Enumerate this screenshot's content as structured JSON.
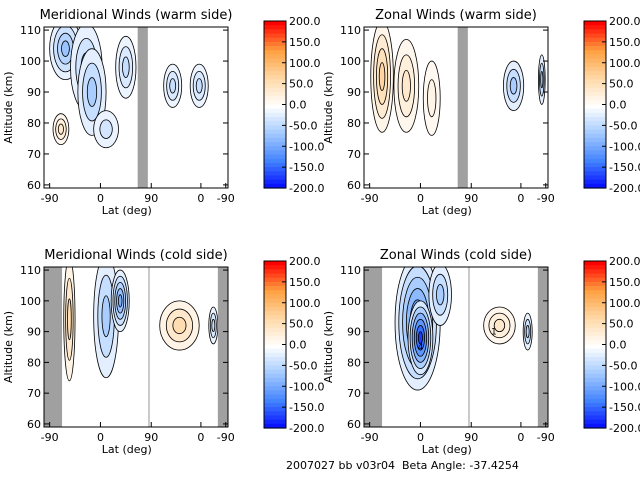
{
  "footer": {
    "date_code": "2007027",
    "tag": "bb",
    "version": "v03r04",
    "beta_label": "Beta Angle:",
    "beta_value": "-37.4254"
  },
  "colors": {
    "gap_gray": "#a0a0a0",
    "contour_line": "#000000",
    "scale": [
      "#0000ff",
      "#4080ff",
      "#a0c8ff",
      "#ffffff",
      "#ffd9a8",
      "#ffa040",
      "#ff0000"
    ]
  },
  "chart_data": [
    {
      "type": "heatmap",
      "title": "Meridional Winds (warm side)",
      "xlabel": "Lat (deg)",
      "ylabel": "Altitude (km)",
      "x_ticks": [
        "-90",
        "0",
        "90",
        "0",
        "-90"
      ],
      "y_ticks": [
        "60",
        "70",
        "80",
        "90",
        "100",
        "110"
      ],
      "ylim": [
        59,
        111
      ],
      "colorbar": {
        "min": -200,
        "max": 200,
        "ticks": [
          "200.0",
          "150.0",
          "100.0",
          "50.0",
          "0.0",
          "-50.0",
          "-100.0",
          "-150.0",
          "-200.0"
        ]
      },
      "gaps": [
        {
          "from": 66,
          "to": 84
        }
      ],
      "blobs": [
        {
          "lat": -62,
          "alt": 104,
          "w": 28,
          "h": 10,
          "value": -70
        },
        {
          "lat": -25,
          "alt": 98,
          "w": 28,
          "h": 14,
          "value": -50
        },
        {
          "lat": -15,
          "alt": 90,
          "w": 25,
          "h": 14,
          "value": -60
        },
        {
          "lat": -70,
          "alt": 78,
          "w": 14,
          "h": 5,
          "value": 40
        },
        {
          "lat": 10,
          "alt": 78,
          "w": 22,
          "h": 6,
          "value": -30
        },
        {
          "lat": 45,
          "alt": 98,
          "w": 18,
          "h": 10,
          "value": -40
        },
        {
          "lat": 128,
          "alt": 92,
          "w": 16,
          "h": 7,
          "value": -40
        },
        {
          "lat": 175,
          "alt": 92,
          "w": 16,
          "h": 7,
          "value": -40
        }
      ]
    },
    {
      "type": "heatmap",
      "title": "Zonal Winds (warm side)",
      "xlabel": "Lat (deg)",
      "ylabel": "Altitude (km)",
      "x_ticks": [
        "-90",
        "0",
        "90",
        "0",
        "-90"
      ],
      "y_ticks": [
        "60",
        "70",
        "80",
        "90",
        "100",
        "110"
      ],
      "ylim": [
        59,
        111
      ],
      "colorbar": {
        "min": -200,
        "max": 200,
        "ticks": [
          "200.0",
          "150.0",
          "100.0",
          "50.0",
          "0.0",
          "-50.0",
          "-100.0",
          "-150.0",
          "-200.0"
        ]
      },
      "gaps": [
        {
          "from": 66,
          "to": 84
        }
      ],
      "blobs": [
        {
          "lat": -68,
          "alt": 95,
          "w": 20,
          "h": 18,
          "value": 70
        },
        {
          "lat": -25,
          "alt": 92,
          "w": 22,
          "h": 15,
          "value": 40
        },
        {
          "lat": 20,
          "alt": 88,
          "w": 15,
          "h": 12,
          "value": 20
        },
        {
          "lat": 165,
          "alt": 92,
          "w": 18,
          "h": 8,
          "value": -60
        },
        {
          "lat": 215,
          "alt": 94,
          "w": 6,
          "h": 8,
          "value": -60
        }
      ]
    },
    {
      "type": "heatmap",
      "title": "Meridional Winds (cold side)",
      "xlabel": "Lat (deg)",
      "ylabel": "Altitude (km)",
      "x_ticks": [
        "-90",
        "0",
        "90",
        "0",
        "-90"
      ],
      "y_ticks": [
        "60",
        "70",
        "80",
        "90",
        "100",
        "110"
      ],
      "ylim": [
        59,
        111
      ],
      "colorbar": {
        "min": -200,
        "max": 200,
        "ticks": [
          "200.0",
          "150.0",
          "100.0",
          "50.0",
          "0.0",
          "-50.0",
          "-100.0",
          "-150.0",
          "-200.0"
        ]
      },
      "gaps": [
        {
          "from": -100,
          "to": -68
        },
        {
          "from": 85,
          "to": 87
        },
        {
          "from": 208,
          "to": 226
        }
      ],
      "blobs": [
        {
          "lat": -55,
          "alt": 94,
          "w": 10,
          "h": 20,
          "value": 60
        },
        {
          "lat": 10,
          "alt": 95,
          "w": 22,
          "h": 20,
          "value": -60
        },
        {
          "lat": 35,
          "alt": 100,
          "w": 16,
          "h": 10,
          "value": -90
        },
        {
          "lat": 140,
          "alt": 92,
          "w": 35,
          "h": 8,
          "value": 60
        },
        {
          "lat": 200,
          "alt": 92,
          "w": 8,
          "h": 6,
          "value": -40
        }
      ]
    },
    {
      "type": "heatmap",
      "title": "Zonal Winds (cold side)",
      "xlabel": "Lat (deg)",
      "ylabel": "Altitude (km)",
      "x_ticks": [
        "-90",
        "0",
        "90",
        "0",
        "-90"
      ],
      "y_ticks": [
        "60",
        "70",
        "80",
        "90",
        "100",
        "110"
      ],
      "ylim": [
        59,
        111
      ],
      "colorbar": {
        "min": -200,
        "max": 200,
        "ticks": [
          "200.0",
          "150.0",
          "100.0",
          "50.0",
          "0.0",
          "-50.0",
          "-100.0",
          "-150.0",
          "-200.0"
        ]
      },
      "gaps": [
        {
          "from": -100,
          "to": -68
        },
        {
          "from": 85,
          "to": 87
        },
        {
          "from": 208,
          "to": 226
        }
      ],
      "blobs": [
        {
          "lat": -5,
          "alt": 93,
          "w": 40,
          "h": 22,
          "value": -120
        },
        {
          "lat": 0,
          "alt": 88,
          "w": 22,
          "h": 12,
          "value": -170
        },
        {
          "lat": 35,
          "alt": 102,
          "w": 20,
          "h": 10,
          "value": -60
        },
        {
          "lat": 140,
          "alt": 92,
          "w": 28,
          "h": 6,
          "value": 40
        },
        {
          "lat": 190,
          "alt": 90,
          "w": 8,
          "h": 6,
          "value": -50
        }
      ],
      "annotations": [
        {
          "text": "4",
          "lat": 0,
          "alt": 84
        },
        {
          "text": "1",
          "lat": 130,
          "alt": 89
        }
      ]
    }
  ]
}
